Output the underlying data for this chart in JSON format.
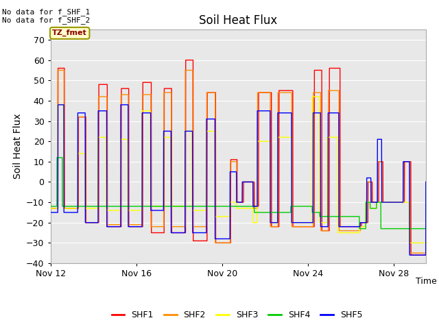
{
  "title": "Soil Heat Flux",
  "ylabel": "Soil Heat Flux",
  "xlabel": "Time",
  "top_text_line1": "No data for f_SHF_1",
  "top_text_line2": "No data for f_SHF_2",
  "box_label": "TZ_fmet",
  "ylim": [
    -40,
    75
  ],
  "yticks": [
    -40,
    -30,
    -20,
    -10,
    0,
    10,
    20,
    30,
    40,
    50,
    60,
    70
  ],
  "legend_labels": [
    "SHF1",
    "SHF2",
    "SHF3",
    "SHF4",
    "SHF5"
  ],
  "series_colors": [
    "#ff0000",
    "#ff8c00",
    "#ffff00",
    "#00cc00",
    "#0000ff"
  ],
  "xtick_labels": [
    "Nov 12",
    "Nov 16",
    "Nov 20",
    "Nov 24",
    "Nov 28"
  ],
  "xtick_positions": [
    0,
    4,
    8,
    12,
    16
  ],
  "xlim": [
    0,
    17.5
  ],
  "series_linewidth": 1.0,
  "figure_facecolor": "#ffffff",
  "axes_facecolor": "#e8e8e8",
  "grid_color": "#ffffff"
}
